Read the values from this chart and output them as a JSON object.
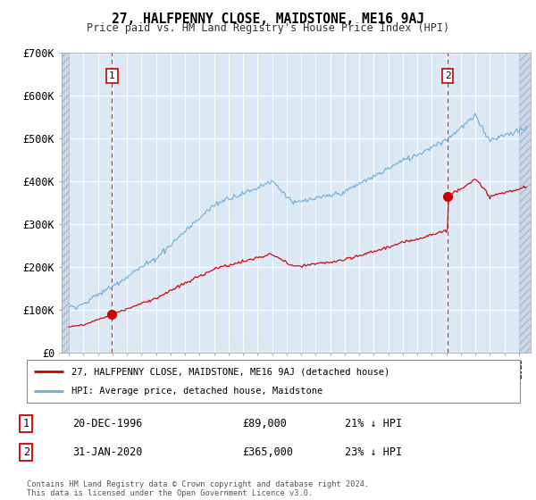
{
  "title": "27, HALFPENNY CLOSE, MAIDSTONE, ME16 9AJ",
  "subtitle": "Price paid vs. HM Land Registry's House Price Index (HPI)",
  "ylim": [
    0,
    700000
  ],
  "yticks": [
    0,
    100000,
    200000,
    300000,
    400000,
    500000,
    600000,
    700000
  ],
  "ytick_labels": [
    "£0",
    "£100K",
    "£200K",
    "£300K",
    "£400K",
    "£500K",
    "£600K",
    "£700K"
  ],
  "background_color": "#ffffff",
  "plot_bg_color": "#dce9f5",
  "hpi_color": "#6baed6",
  "price_color": "#cc0000",
  "grid_color": "#ffffff",
  "sale1_date": 1996.97,
  "sale1_price": 89000,
  "sale1_label": "1",
  "sale2_date": 2020.08,
  "sale2_price": 365000,
  "sale2_label": "2",
  "legend_label1": "27, HALFPENNY CLOSE, MAIDSTONE, ME16 9AJ (detached house)",
  "legend_label2": "HPI: Average price, detached house, Maidstone",
  "table_row1": [
    "1",
    "20-DEC-1996",
    "£89,000",
    "21% ↓ HPI"
  ],
  "table_row2": [
    "2",
    "31-JAN-2020",
    "£365,000",
    "23% ↓ HPI"
  ],
  "footnote": "Contains HM Land Registry data © Crown copyright and database right 2024.\nThis data is licensed under the Open Government Licence v3.0.",
  "xmin": 1993.5,
  "xmax": 2025.8
}
